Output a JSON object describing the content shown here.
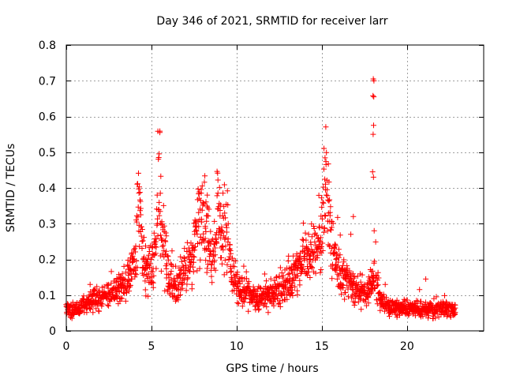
{
  "chart_data": {
    "type": "scatter",
    "title": "Day 346 of 2021, SRMTID for receiver larr",
    "xlabel": "GPS time / hours",
    "ylabel": "SRMTID / TECUs",
    "xlim": [
      0,
      24.5
    ],
    "ylim": [
      0,
      0.8
    ],
    "xticks": [
      0,
      5,
      10,
      15,
      20
    ],
    "yticks": [
      0,
      0.1,
      0.2,
      0.3,
      0.4,
      0.5,
      0.6,
      0.7,
      0.8
    ],
    "grid": true,
    "marker": "+",
    "color": "#ff0000",
    "point_spacing_hours": 0.03,
    "profile": [
      [
        0.0,
        0.065
      ],
      [
        0.3,
        0.055
      ],
      [
        0.8,
        0.065
      ],
      [
        1.5,
        0.085
      ],
      [
        2.2,
        0.095
      ],
      [
        3.0,
        0.11
      ],
      [
        3.6,
        0.14
      ],
      [
        4.0,
        0.19
      ],
      [
        4.25,
        0.26
      ],
      [
        4.5,
        0.2
      ],
      [
        4.8,
        0.16
      ],
      [
        5.1,
        0.2
      ],
      [
        5.4,
        0.29
      ],
      [
        5.7,
        0.24
      ],
      [
        6.0,
        0.15
      ],
      [
        6.4,
        0.12
      ],
      [
        6.9,
        0.16
      ],
      [
        7.3,
        0.2
      ],
      [
        7.8,
        0.25
      ],
      [
        8.3,
        0.22
      ],
      [
        8.6,
        0.18
      ],
      [
        8.9,
        0.26
      ],
      [
        9.3,
        0.25
      ],
      [
        9.7,
        0.16
      ],
      [
        10.2,
        0.11
      ],
      [
        10.8,
        0.095
      ],
      [
        11.4,
        0.09
      ],
      [
        12.0,
        0.1
      ],
      [
        12.6,
        0.12
      ],
      [
        13.2,
        0.14
      ],
      [
        13.8,
        0.19
      ],
      [
        14.3,
        0.22
      ],
      [
        14.8,
        0.23
      ],
      [
        15.3,
        0.3
      ],
      [
        15.6,
        0.22
      ],
      [
        16.0,
        0.17
      ],
      [
        16.5,
        0.14
      ],
      [
        17.2,
        0.11
      ],
      [
        17.7,
        0.1
      ],
      [
        18.1,
        0.15
      ],
      [
        18.5,
        0.08
      ],
      [
        19.0,
        0.065
      ],
      [
        20.0,
        0.065
      ],
      [
        21.0,
        0.06
      ],
      [
        22.0,
        0.06
      ],
      [
        22.8,
        0.06
      ]
    ],
    "peaks": [
      {
        "x": 4.25,
        "amp": 0.12,
        "width": 0.12
      },
      {
        "x": 5.45,
        "amp": 0.12,
        "width": 0.1
      },
      {
        "x": 8.0,
        "amp": 0.08,
        "width": 0.35
      },
      {
        "x": 8.9,
        "amp": 0.1,
        "width": 0.12
      },
      {
        "x": 9.4,
        "amp": 0.06,
        "width": 0.25
      },
      {
        "x": 15.2,
        "amp": 0.12,
        "width": 0.15
      },
      {
        "x": 15.45,
        "amp": 0.06,
        "width": 0.2
      }
    ],
    "outliers": [
      [
        18.02,
        0.705
      ],
      [
        18.06,
        0.7
      ],
      [
        18.0,
        0.658
      ],
      [
        18.05,
        0.655
      ],
      [
        18.04,
        0.575
      ],
      [
        18.01,
        0.55
      ],
      [
        17.98,
        0.445
      ],
      [
        18.03,
        0.43
      ],
      [
        18.07,
        0.28
      ],
      [
        16.7,
        0.27
      ],
      [
        16.85,
        0.32
      ],
      [
        21.1,
        0.145
      ],
      [
        3.15,
        0.15
      ],
      [
        1.4,
        0.13
      ]
    ],
    "x_end": 22.85,
    "seed": 346
  }
}
